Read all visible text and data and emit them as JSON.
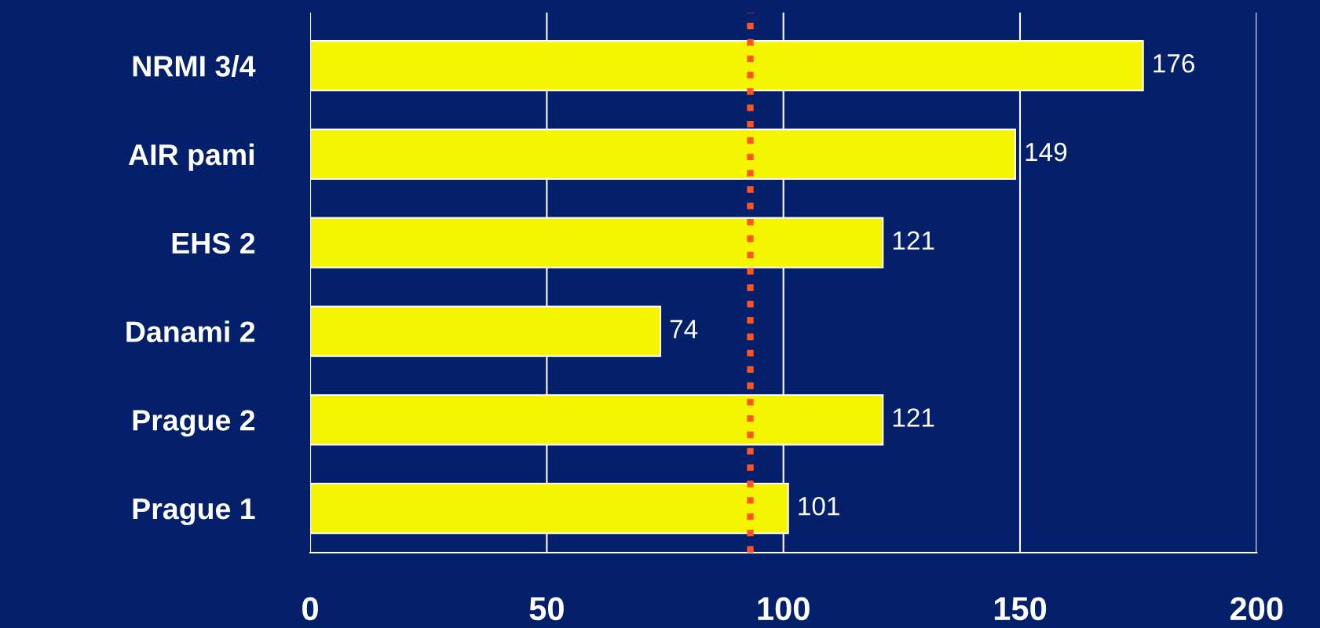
{
  "chart_data": {
    "type": "bar",
    "orientation": "horizontal",
    "categories": [
      "NRMI 3/4",
      "AIR pami",
      "EHS 2",
      "Danami 2",
      "Prague 2",
      "Prague 1"
    ],
    "values": [
      176,
      149,
      121,
      74,
      121,
      101
    ],
    "color": "#f5f500",
    "xlim": [
      0,
      200
    ],
    "xticks": [
      0,
      50,
      100,
      150,
      200
    ],
    "grid": "x",
    "data_labels": true,
    "ref_lines": [
      {
        "axis": "x",
        "value": 93,
        "color": "#ff5522",
        "line_style": "dotted"
      }
    ]
  }
}
